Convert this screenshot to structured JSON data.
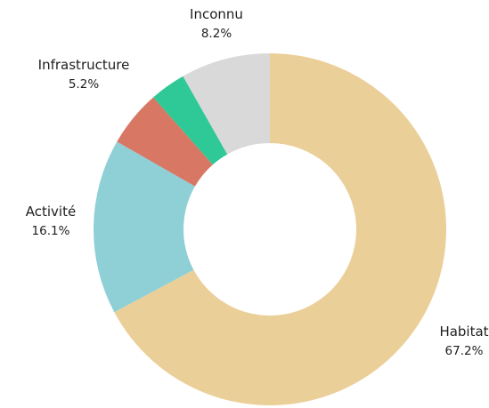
{
  "chart_data": {
    "type": "pie",
    "variant": "donut",
    "title": "",
    "slices": [
      {
        "label": "Habitat",
        "value": 67.2,
        "display": "67.2%",
        "color": "#ebcf98"
      },
      {
        "label": "Activité",
        "value": 16.1,
        "display": "16.1%",
        "color": "#8fcfd6"
      },
      {
        "label": "Infrastructure",
        "value": 5.2,
        "display": "5.2%",
        "color": "#d77764"
      },
      {
        "label": "",
        "value": 3.3,
        "display": "",
        "color": "#2fc897"
      },
      {
        "label": "Inconnu",
        "value": 8.2,
        "display": "8.2%",
        "color": "#d9d9d9"
      }
    ],
    "start": "top",
    "direction": "clockwise",
    "legend": "none"
  }
}
